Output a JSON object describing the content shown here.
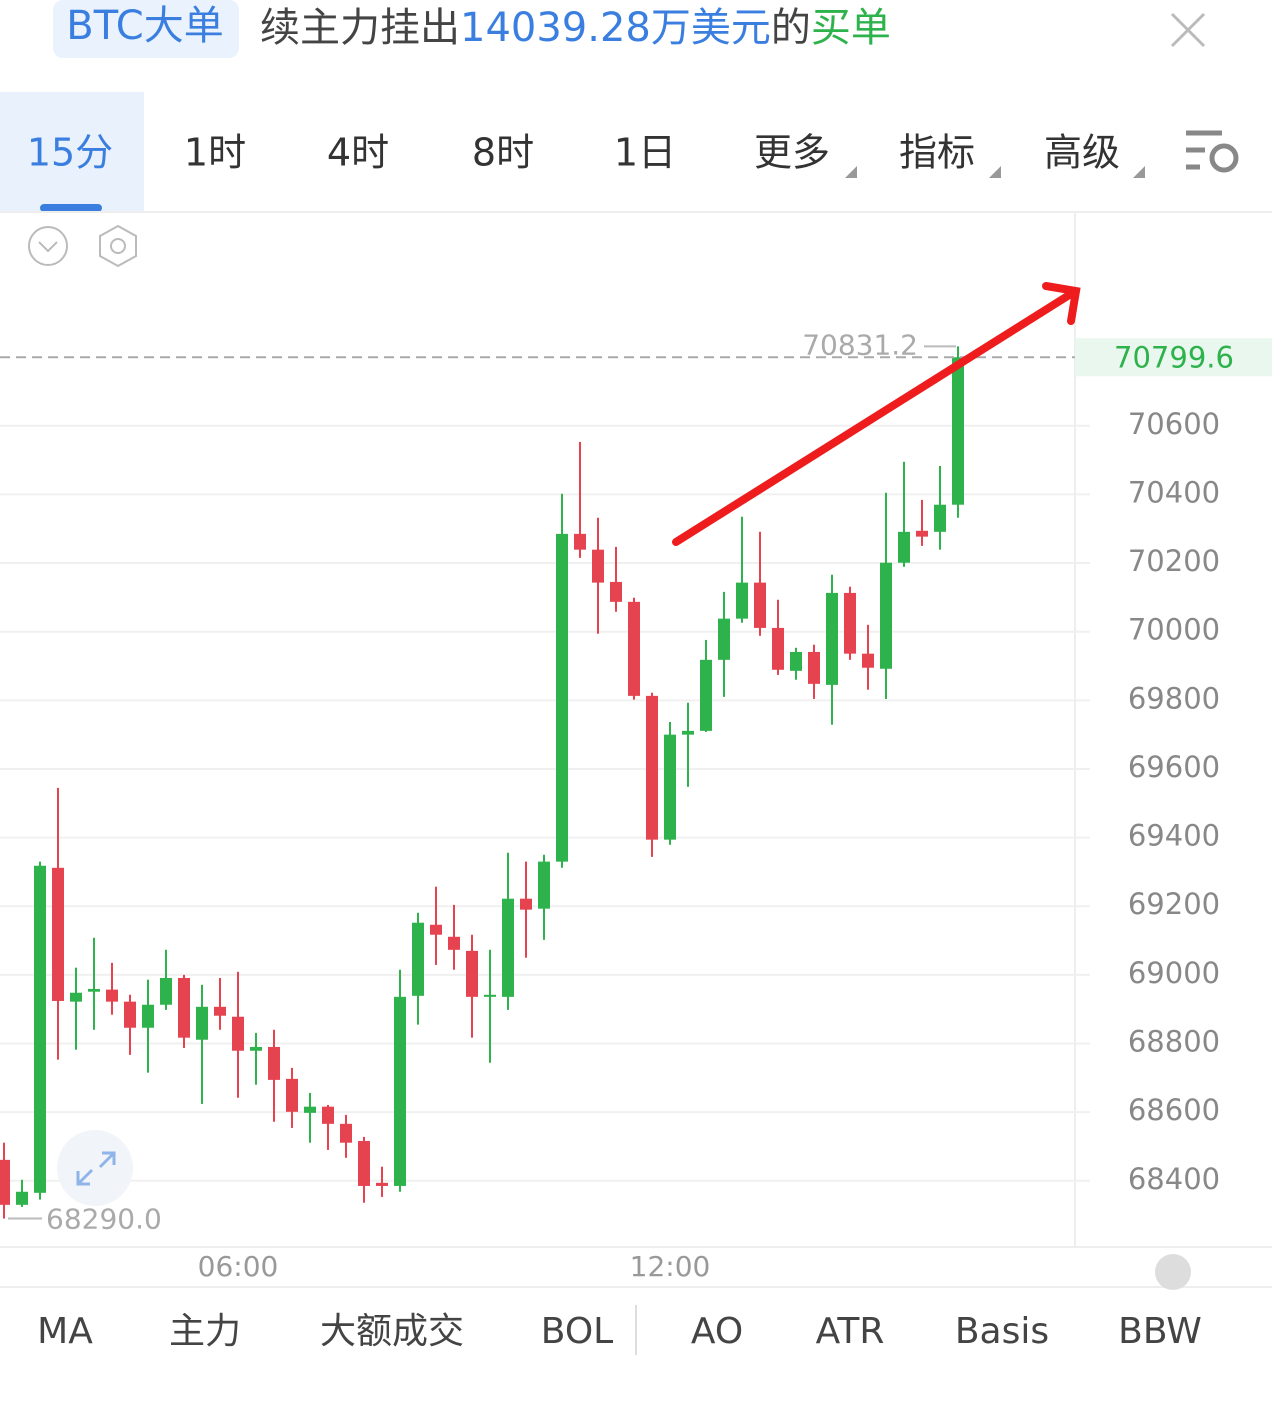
{
  "header": {
    "badge": "BTC大单",
    "parts": [
      "续主力挂出",
      "14039.28万美元",
      "的",
      "买单"
    ]
  },
  "tabs": [
    "15分",
    "1时",
    "4时",
    "8时",
    "1日",
    "更多",
    "指标",
    "高级"
  ],
  "indicators": [
    "MA",
    "主力",
    "大额成交",
    "BOL",
    "AO",
    "ATR",
    "Basis",
    "BBW"
  ],
  "chart_data": {
    "type": "candlestick",
    "categories": [
      null,
      null,
      null,
      null,
      null,
      null,
      null,
      null,
      null,
      null,
      null,
      null,
      null,
      "06:00",
      null,
      null,
      null,
      null,
      null,
      null,
      null,
      null,
      null,
      null,
      null,
      null,
      null,
      null,
      null,
      null,
      null,
      null,
      null,
      null,
      null,
      null,
      null,
      "12:00",
      null,
      null,
      null,
      null,
      null,
      null,
      null,
      null,
      null,
      null,
      null,
      null,
      null,
      null,
      null,
      null
    ],
    "open": [
      68461,
      68330,
      68365,
      69312,
      68922,
      68951,
      68957,
      68922,
      68846,
      68913,
      68991,
      68811,
      68907,
      68878,
      68779,
      68790,
      68697,
      68598,
      68616,
      68566,
      68516,
      68394,
      68385,
      68939,
      69146,
      69111,
      69070,
      68936,
      68936,
      69222,
      69193,
      69330,
      70285,
      70239,
      70145,
      70087,
      69813,
      69394,
      69700,
      69711,
      69918,
      70038,
      70143,
      70011,
      69886,
      69941,
      69845,
      70113,
      69936,
      69892,
      70201,
      70294,
      70291,
      70370
    ],
    "high": [
      68511,
      68403,
      69330,
      69545,
      69021,
      69108,
      69035,
      68942,
      68986,
      69073,
      69000,
      68971,
      68991,
      69009,
      68831,
      68840,
      68729,
      68656,
      68621,
      68592,
      68528,
      68441,
      69015,
      69181,
      69257,
      69204,
      69117,
      69073,
      69356,
      69330,
      69350,
      70402,
      70553,
      70332,
      70247,
      70099,
      69822,
      69737,
      69793,
      69976,
      70116,
      70335,
      70291,
      70093,
      69953,
      69962,
      70166,
      70131,
      70020,
      70405,
      70495,
      70384,
      70483,
      70831.2
    ],
    "low": [
      68290,
      68324,
      68345,
      68753,
      68782,
      68840,
      68884,
      68767,
      68715,
      68898,
      68787,
      68624,
      68840,
      68642,
      68680,
      68572,
      68554,
      68511,
      68490,
      68467,
      68336,
      68353,
      68368,
      68855,
      69029,
      69015,
      68817,
      68744,
      68898,
      69050,
      69102,
      69312,
      70215,
      69994,
      70058,
      69802,
      69344,
      69379,
      69548,
      69708,
      69810,
      70026,
      69988,
      69874,
      69860,
      69804,
      69729,
      69918,
      69831,
      69804,
      70189,
      70250,
      70239,
      70332
    ],
    "close": [
      68330,
      68368,
      69318,
      68924,
      68948,
      68959,
      68922,
      68846,
      68913,
      68991,
      68817,
      68907,
      68881,
      68779,
      68790,
      68694,
      68601,
      68616,
      68566,
      68511,
      68385,
      68385,
      68936,
      69152,
      69117,
      69073,
      68936,
      68942,
      69222,
      69190,
      69330,
      70285,
      70239,
      70143,
      70087,
      69813,
      69394,
      69700,
      69711,
      69918,
      70038,
      70143,
      70011,
      69889,
      69941,
      69848,
      70113,
      69936,
      69895,
      70201,
      70291,
      70277,
      70370,
      70799.6
    ],
    "low_value_label": "68290.0",
    "up_color": "#2eb24c",
    "down_color": "#e5434f",
    "ylim": [
      68210,
      71220
    ],
    "yticks": [
      68400,
      68600,
      68800,
      69000,
      69200,
      69400,
      69600,
      69800,
      70000,
      70200,
      70400,
      70600
    ],
    "grid": true
  }
}
